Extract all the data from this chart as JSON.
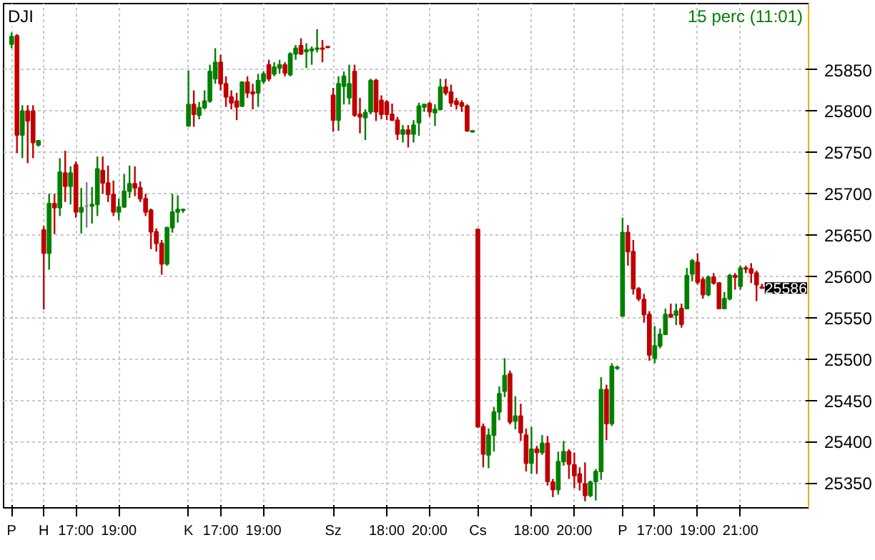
{
  "chart_data": {
    "type": "candlestick",
    "title": "DJI",
    "subtitle": "15 perc (11:01)",
    "categories": [
      "P",
      null,
      null,
      null,
      null,
      null,
      "H",
      null,
      null,
      null,
      null,
      null,
      "17:00",
      null,
      null,
      null,
      null,
      null,
      null,
      null,
      "19:00",
      null,
      null,
      null,
      null,
      null,
      null,
      null,
      null,
      null,
      null,
      null,
      null,
      "K",
      null,
      null,
      null,
      null,
      null,
      "17:00",
      null,
      null,
      null,
      null,
      null,
      null,
      null,
      "19:00",
      null,
      null,
      null,
      null,
      null,
      null,
      null,
      null,
      null,
      null,
      null,
      null,
      "Sz",
      null,
      null,
      null,
      null,
      null,
      null,
      null,
      null,
      null,
      "18:00",
      null,
      null,
      null,
      null,
      null,
      null,
      null,
      "20:00",
      null,
      null,
      null,
      null,
      null,
      null,
      null,
      null,
      "Cs",
      null,
      null,
      null,
      null,
      null,
      null,
      null,
      null,
      null,
      "18:00",
      null,
      null,
      null,
      null,
      null,
      null,
      null,
      "20:00",
      null,
      null,
      null,
      null,
      null,
      null,
      null,
      null,
      "P",
      null,
      null,
      null,
      null,
      null,
      "17:00",
      null,
      null,
      null,
      null,
      null,
      null,
      null,
      "19:00",
      null,
      null,
      null,
      null,
      null,
      null,
      null,
      "21:00",
      null,
      null,
      null,
      null
    ],
    "ohlc": [
      [
        25881,
        25895,
        25876,
        25890
      ],
      [
        25891,
        25893,
        25749,
        25771
      ],
      [
        25771,
        25807,
        25743,
        25800
      ],
      [
        25800,
        25807,
        25737,
        25788
      ],
      [
        25800,
        25807,
        25743,
        25762
      ],
      [
        25759,
        25764,
        25757,
        25764
      ],
      [
        25656,
        25661,
        25560,
        25628
      ],
      [
        25628,
        25700,
        25608,
        25688
      ],
      [
        25688,
        25700,
        25651,
        25683
      ],
      [
        25683,
        25743,
        25673,
        25726
      ],
      [
        25725,
        25752,
        25690,
        25709
      ],
      [
        25709,
        25733,
        25687,
        25725
      ],
      [
        25735,
        25739,
        25671,
        25678
      ],
      [
        25678,
        25707,
        25652,
        25683
      ],
      [
        25685,
        25714,
        25659,
        25685
      ],
      [
        25685,
        25708,
        25664,
        25687
      ],
      [
        25687,
        25745,
        25673,
        25730
      ],
      [
        25728,
        25745,
        25700,
        25713
      ],
      [
        25713,
        25734,
        25690,
        25699
      ],
      [
        25699,
        25716,
        25673,
        25678
      ],
      [
        25678,
        25694,
        25668,
        25684
      ],
      [
        25684,
        25724,
        25683,
        25703
      ],
      [
        25703,
        25734,
        25695,
        25712
      ],
      [
        25712,
        25733,
        25697,
        25707
      ],
      [
        25707,
        25715,
        25690,
        25694
      ],
      [
        25694,
        25700,
        25673,
        25678
      ],
      [
        25680,
        25682,
        25633,
        25654
      ],
      [
        25654,
        25658,
        25630,
        25640
      ],
      [
        25640,
        25644,
        25602,
        25615
      ],
      [
        25615,
        25660,
        25613,
        25659
      ],
      [
        25659,
        25700,
        25653,
        25678
      ],
      [
        25678,
        25698,
        25665,
        25681
      ],
      [
        25680,
        25682,
        25677,
        25681
      ],
      [
        25782,
        25849,
        25781,
        25808
      ],
      [
        25808,
        25825,
        25781,
        25796
      ],
      [
        25795,
        25811,
        25790,
        25804
      ],
      [
        25804,
        25825,
        25802,
        25812
      ],
      [
        25812,
        25856,
        25810,
        25848
      ],
      [
        25839,
        25876,
        25833,
        25859
      ],
      [
        25859,
        25868,
        25825,
        25833
      ],
      [
        25833,
        25842,
        25805,
        25817
      ],
      [
        25817,
        25825,
        25802,
        25810
      ],
      [
        25812,
        25822,
        25789,
        25805
      ],
      [
        25806,
        25836,
        25805,
        25835
      ],
      [
        25835,
        25842,
        25816,
        25822
      ],
      [
        25823,
        25833,
        25802,
        25821
      ],
      [
        25822,
        25845,
        25805,
        25837
      ],
      [
        25836,
        25848,
        25833,
        25845
      ],
      [
        25856,
        25862,
        25836,
        25839
      ],
      [
        25845,
        25859,
        25842,
        25853
      ],
      [
        25852,
        25862,
        25845,
        25856
      ],
      [
        25856,
        25859,
        25842,
        25846
      ],
      [
        25844,
        25871,
        25842,
        25869
      ],
      [
        25869,
        25880,
        25862,
        25876
      ],
      [
        25879,
        25888,
        25868,
        25869
      ],
      [
        25872,
        25882,
        25852,
        25874
      ],
      [
        25873,
        25878,
        25856,
        25875
      ],
      [
        25875,
        25899,
        25871,
        25876
      ],
      [
        25876,
        25886,
        25859,
        25875
      ],
      [
        25878,
        25878,
        25876,
        25877
      ],
      [
        25819,
        25828,
        25775,
        25789
      ],
      [
        25789,
        25842,
        25776,
        25833
      ],
      [
        25830,
        25848,
        25808,
        25842
      ],
      [
        25816,
        25856,
        25808,
        25833
      ],
      [
        25848,
        25856,
        25793,
        25795
      ],
      [
        25796,
        25816,
        25773,
        25793
      ],
      [
        25792,
        25802,
        25765,
        25798
      ],
      [
        25799,
        25839,
        25796,
        25837
      ],
      [
        25837,
        25839,
        25788,
        25799
      ],
      [
        25813,
        25819,
        25790,
        25796
      ],
      [
        25811,
        25813,
        25789,
        25796
      ],
      [
        25796,
        25809,
        25788,
        25789
      ],
      [
        25789,
        25793,
        25765,
        25772
      ],
      [
        25772,
        25783,
        25762,
        25777
      ],
      [
        25777,
        25783,
        25756,
        25772
      ],
      [
        25772,
        25789,
        25762,
        25783
      ],
      [
        25786,
        25810,
        25770,
        25806
      ],
      [
        25805,
        25809,
        25799,
        25808
      ],
      [
        25809,
        25811,
        25793,
        25799
      ],
      [
        25798,
        25808,
        25782,
        25802
      ],
      [
        25802,
        25839,
        25802,
        25829
      ],
      [
        25829,
        25839,
        25819,
        25822
      ],
      [
        25823,
        25832,
        25805,
        25810
      ],
      [
        25812,
        25816,
        25802,
        25808
      ],
      [
        25810,
        25813,
        25799,
        25806
      ],
      [
        25806,
        25808,
        25775,
        25776
      ],
      [
        25775,
        25777,
        25774,
        25776
      ],
      [
        25657,
        25657,
        25417,
        25418
      ],
      [
        25418,
        25422,
        25369,
        25385
      ],
      [
        25384,
        25416,
        25368,
        25408
      ],
      [
        25408,
        25442,
        25388,
        25436
      ],
      [
        25436,
        25467,
        25426,
        25458
      ],
      [
        25461,
        25501,
        25454,
        25480
      ],
      [
        25482,
        25486,
        25421,
        25424
      ],
      [
        25425,
        25455,
        25415,
        25431
      ],
      [
        25431,
        25446,
        25401,
        25411
      ],
      [
        25408,
        25416,
        25364,
        25374
      ],
      [
        25374,
        25418,
        25361,
        25391
      ],
      [
        25391,
        25395,
        25361,
        25387
      ],
      [
        25387,
        25408,
        25384,
        25398
      ],
      [
        25398,
        25407,
        25347,
        25352
      ],
      [
        25351,
        25355,
        25333,
        25342
      ],
      [
        25342,
        25388,
        25336,
        25376
      ],
      [
        25376,
        25401,
        25371,
        25388
      ],
      [
        25388,
        25391,
        25355,
        25373
      ],
      [
        25372,
        25387,
        25344,
        25359
      ],
      [
        25361,
        25369,
        25341,
        25351
      ],
      [
        25349,
        25375,
        25328,
        25335
      ],
      [
        25335,
        25353,
        25333,
        25351
      ],
      [
        25352,
        25367,
        25329,
        25364
      ],
      [
        25364,
        25478,
        25354,
        25463
      ],
      [
        25463,
        25469,
        25402,
        25422
      ],
      [
        25422,
        25495,
        25419,
        25491
      ],
      [
        25489,
        25492,
        25487,
        25490
      ],
      [
        25552,
        25671,
        25552,
        25653
      ],
      [
        25653,
        25662,
        25613,
        25630
      ],
      [
        25630,
        25644,
        25578,
        25585
      ],
      [
        25585,
        25587,
        25570,
        25573
      ],
      [
        25572,
        25579,
        25544,
        25554
      ],
      [
        25554,
        25558,
        25498,
        25505
      ],
      [
        25501,
        25540,
        25495,
        25516
      ],
      [
        25516,
        25537,
        25513,
        25530
      ],
      [
        25530,
        25561,
        25529,
        25554
      ],
      [
        25554,
        25567,
        25550,
        25551
      ],
      [
        25553,
        25567,
        25541,
        25558
      ],
      [
        25561,
        25567,
        25538,
        25542
      ],
      [
        25561,
        25610,
        25561,
        25601
      ],
      [
        25603,
        25621,
        25594,
        25619
      ],
      [
        25617,
        25628,
        25590,
        25593
      ],
      [
        25596,
        25599,
        25573,
        25578
      ],
      [
        25578,
        25601,
        25576,
        25599
      ],
      [
        25599,
        25604,
        25590,
        25592
      ],
      [
        25592,
        25593,
        25561,
        25561
      ],
      [
        25561,
        25581,
        25561,
        25573
      ],
      [
        25573,
        25603,
        25571,
        25601
      ],
      [
        25601,
        25604,
        25584,
        25599
      ],
      [
        25588,
        25613,
        25584,
        25610
      ],
      [
        25610,
        25613,
        25604,
        25609
      ],
      [
        25609,
        25616,
        25592,
        25604
      ],
      [
        25604,
        25607,
        25570,
        25590
      ],
      [
        25587,
        25591,
        25585,
        25586
      ]
    ],
    "colors": [
      "#008000",
      "#c00000",
      "#008000",
      "#c00000",
      "#c00000",
      "#008000",
      "#c00000",
      "#008000",
      "#c00000",
      "#008000",
      "#c00000",
      "#008000",
      "#c00000",
      "#008000",
      "#808080",
      "#008000",
      "#008000",
      "#c00000",
      "#c00000",
      "#c00000",
      "#008000",
      "#008000",
      "#008000",
      "#c00000",
      "#c00000",
      "#c00000",
      "#c00000",
      "#c00000",
      "#c00000",
      "#008000",
      "#008000",
      "#008000",
      "#008000",
      "#008000",
      "#c00000",
      "#008000",
      "#008000",
      "#008000",
      "#008000",
      "#c00000",
      "#c00000",
      "#c00000",
      "#c00000",
      "#008000",
      "#c00000",
      "#c00000",
      "#008000",
      "#008000",
      "#c00000",
      "#008000",
      "#008000",
      "#c00000",
      "#008000",
      "#008000",
      "#c00000",
      "#008000",
      "#008000",
      "#008000",
      "#c00000",
      "#c00000",
      "#c00000",
      "#008000",
      "#008000",
      "#008000",
      "#c00000",
      "#c00000",
      "#008000",
      "#008000",
      "#c00000",
      "#c00000",
      "#c00000",
      "#c00000",
      "#c00000",
      "#008000",
      "#c00000",
      "#008000",
      "#008000",
      "#008000",
      "#c00000",
      "#008000",
      "#008000",
      "#c00000",
      "#c00000",
      "#c00000",
      "#c00000",
      "#c00000",
      "#008000",
      "#c00000",
      "#c00000",
      "#008000",
      "#008000",
      "#008000",
      "#008000",
      "#c00000",
      "#008000",
      "#c00000",
      "#c00000",
      "#008000",
      "#c00000",
      "#008000",
      "#c00000",
      "#c00000",
      "#008000",
      "#008000",
      "#c00000",
      "#c00000",
      "#c00000",
      "#c00000",
      "#008000",
      "#008000",
      "#008000",
      "#c00000",
      "#008000",
      "#008000",
      "#008000",
      "#c00000",
      "#c00000",
      "#c00000",
      "#c00000",
      "#c00000",
      "#008000",
      "#008000",
      "#008000",
      "#c00000",
      "#008000",
      "#c00000",
      "#008000",
      "#008000",
      "#c00000",
      "#c00000",
      "#008000",
      "#c00000",
      "#c00000",
      "#008000",
      "#008000",
      "#c00000",
      "#008000",
      "#c00000",
      "#c00000",
      "#c00000",
      "#c00000"
    ],
    "ylim": [
      25320,
      25930
    ],
    "yticks": [
      25350,
      25400,
      25450,
      25500,
      25550,
      25600,
      25650,
      25700,
      25750,
      25800,
      25850
    ],
    "annotations": [
      "25586"
    ],
    "grid": true
  }
}
